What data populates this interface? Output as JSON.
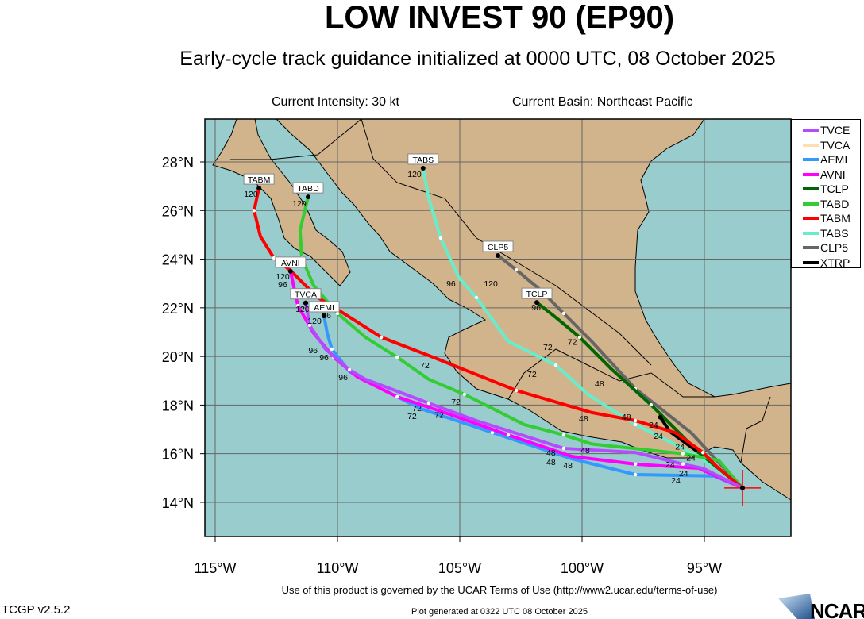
{
  "header": {
    "title": "LOW INVEST 90 (EP90)",
    "subtitle": "Early-cycle track guidance initialized at 0000 UTC, 08 October 2025",
    "current_intensity": "Current Intensity: 30 kt",
    "current_basin": "Current Basin: Northeast Pacific"
  },
  "map": {
    "lon_range": [
      -115.42,
      -91.46
    ],
    "lat_range": [
      12.6,
      29.76
    ],
    "colors": {
      "ocean": "#99cccc",
      "land": "#d2b48c",
      "grid": "#666666"
    },
    "lat_labels": [
      {
        "lat": 28,
        "label": "28°N"
      },
      {
        "lat": 26,
        "label": "26°N"
      },
      {
        "lat": 24,
        "label": "24°N"
      },
      {
        "lat": 22,
        "label": "22°N"
      },
      {
        "lat": 20,
        "label": "20°N"
      },
      {
        "lat": 18,
        "label": "18°N"
      },
      {
        "lat": 16,
        "label": "16°N"
      },
      {
        "lat": 14,
        "label": "14°N"
      }
    ],
    "lon_labels": [
      {
        "lon": -115,
        "label": "115°W"
      },
      {
        "lon": -110,
        "label": "110°W"
      },
      {
        "lon": -105,
        "label": "105°W"
      },
      {
        "lon": -100,
        "label": "100°W"
      },
      {
        "lon": -95,
        "label": "95°W"
      }
    ],
    "current_position": {
      "lon": -93.44,
      "lat": 14.59,
      "marker_color": "#ff0000"
    }
  },
  "legend": [
    {
      "name": "TVCE",
      "color": "#b24cff"
    },
    {
      "name": "TVCA",
      "color": "#ffdfb0"
    },
    {
      "name": "AEMI",
      "color": "#3399ff"
    },
    {
      "name": "AVNI",
      "color": "#ff00ff"
    },
    {
      "name": "TCLP",
      "color": "#006600"
    },
    {
      "name": "TABD",
      "color": "#33cc33"
    },
    {
      "name": "TABM",
      "color": "#ff0000"
    },
    {
      "name": "TABS",
      "color": "#66eecc"
    },
    {
      "name": "CLP5",
      "color": "#666666"
    },
    {
      "name": "XTRP",
      "color": "#000000"
    }
  ],
  "tracks": [
    {
      "name": "TVCA",
      "color": "#ffdfb0",
      "label": "",
      "points": [
        [
          -93.44,
          14.59
        ],
        [
          -95.06,
          15.4
        ],
        [
          -95.88,
          15.57
        ],
        [
          -97.82,
          16.05
        ],
        [
          -100.75,
          16.22
        ],
        [
          -104.32,
          17.36
        ],
        [
          -106.27,
          18.08
        ],
        [
          -108.86,
          19.06
        ],
        [
          -109.51,
          19.45
        ],
        [
          -110.49,
          20.3
        ],
        [
          -111.14,
          21.28
        ],
        [
          -111.3,
          22.2
        ]
      ]
    },
    {
      "name": "TABS",
      "color": "#66eecc",
      "label": "TABS",
      "points": [
        [
          -93.44,
          14.59
        ],
        [
          -95.23,
          15.89
        ],
        [
          -97.82,
          17.2
        ],
        [
          -99.77,
          18.44
        ],
        [
          -101.07,
          19.64
        ],
        [
          -103.02,
          20.62
        ],
        [
          -104.32,
          22.42
        ],
        [
          -105.03,
          23.23
        ],
        [
          -105.78,
          24.87
        ],
        [
          -106.27,
          26.5
        ],
        [
          -106.5,
          27.74
        ]
      ]
    },
    {
      "name": "CLP5",
      "color": "#666666",
      "label": "CLP5",
      "points": [
        [
          -93.44,
          14.59
        ],
        [
          -95.55,
          16.87
        ],
        [
          -97.82,
          18.67
        ],
        [
          -99.61,
          20.62
        ],
        [
          -100.75,
          21.77
        ],
        [
          -101.72,
          22.75
        ],
        [
          -102.69,
          23.56
        ],
        [
          -103.44,
          24.15
        ]
      ]
    },
    {
      "name": "TCLP",
      "color": "#006600",
      "label": "TCLP",
      "points": [
        [
          -93.44,
          14.59
        ],
        [
          -95.23,
          16.05
        ],
        [
          -97.18,
          18.01
        ],
        [
          -98.8,
          19.48
        ],
        [
          -100.1,
          20.79
        ],
        [
          -101.07,
          21.6
        ],
        [
          -101.85,
          22.22
        ]
      ]
    },
    {
      "name": "XTRP",
      "color": "#000000",
      "label": "",
      "points": [
        [
          -95.3,
          16.1
        ],
        [
          -96.4,
          16.9
        ],
        [
          -96.8,
          17.5
        ]
      ]
    },
    {
      "name": "TABD",
      "color": "#33cc33",
      "label": "TABD",
      "points": [
        [
          -93.44,
          14.59
        ],
        [
          -94.42,
          15.73
        ],
        [
          -95.88,
          16.0
        ],
        [
          -99.61,
          16.4
        ],
        [
          -100.75,
          16.77
        ],
        [
          -102.37,
          17.2
        ],
        [
          -104.81,
          18.44
        ],
        [
          -106.27,
          19.06
        ],
        [
          -107.56,
          19.97
        ],
        [
          -108.86,
          20.79
        ],
        [
          -110.0,
          21.77
        ],
        [
          -110.97,
          22.91
        ],
        [
          -111.46,
          24.05
        ],
        [
          -111.53,
          25.19
        ],
        [
          -111.2,
          26.56
        ]
      ]
    },
    {
      "name": "TABM",
      "color": "#ff0000",
      "label": "TABM",
      "points": [
        [
          -93.44,
          14.59
        ],
        [
          -94.42,
          15.4
        ],
        [
          -95.06,
          16.05
        ],
        [
          -96.2,
          16.87
        ],
        [
          -97.82,
          17.36
        ],
        [
          -99.6,
          17.69
        ],
        [
          -102.69,
          18.6
        ],
        [
          -106.1,
          19.97
        ],
        [
          -108.21,
          20.79
        ],
        [
          -110.0,
          21.93
        ],
        [
          -110.81,
          22.42
        ],
        [
          -111.95,
          23.56
        ],
        [
          -112.6,
          24.05
        ],
        [
          -113.15,
          24.93
        ],
        [
          -113.41,
          26.0
        ],
        [
          -113.21,
          26.92
        ]
      ]
    },
    {
      "name": "AEMI",
      "color": "#3399ff",
      "label": "AEMI",
      "points": [
        [
          -93.44,
          14.59
        ],
        [
          -94.58,
          15.08
        ],
        [
          -97.82,
          15.14
        ],
        [
          -100.42,
          15.79
        ],
        [
          -103.67,
          16.87
        ],
        [
          -106.59,
          17.85
        ],
        [
          -108.21,
          18.67
        ],
        [
          -109.51,
          19.38
        ],
        [
          -110.23,
          20.3
        ],
        [
          -110.42,
          20.95
        ],
        [
          -110.55,
          21.67
        ]
      ]
    },
    {
      "name": "AVNI",
      "color": "#ff00ff",
      "label": "AVNI",
      "points": [
        [
          -93.44,
          14.59
        ],
        [
          -95.23,
          15.4
        ],
        [
          -97.82,
          15.57
        ],
        [
          -100.42,
          15.89
        ],
        [
          -103.02,
          16.77
        ],
        [
          -105.62,
          17.69
        ],
        [
          -107.56,
          18.34
        ],
        [
          -109.19,
          19.16
        ],
        [
          -110.16,
          19.97
        ],
        [
          -110.97,
          20.95
        ],
        [
          -111.62,
          22.09
        ],
        [
          -111.92,
          23.5
        ]
      ]
    },
    {
      "name": "TVCE",
      "color": "#b24cff",
      "label": "TVCA",
      "points": [
        [
          -93.44,
          14.59
        ],
        [
          -95.06,
          15.4
        ],
        [
          -95.88,
          15.57
        ],
        [
          -97.82,
          16.05
        ],
        [
          -100.75,
          16.22
        ],
        [
          -104.32,
          17.36
        ],
        [
          -106.27,
          18.08
        ],
        [
          -108.86,
          19.06
        ],
        [
          -109.51,
          19.45
        ],
        [
          -110.49,
          20.3
        ],
        [
          -111.14,
          21.28
        ],
        [
          -111.3,
          22.2
        ]
      ]
    }
  ],
  "hour_labels": [
    {
      "text": "120",
      "lon": -113.54,
      "lat": 26.69
    },
    {
      "text": "120",
      "lon": -111.56,
      "lat": 26.3
    },
    {
      "text": "120",
      "lon": -106.85,
      "lat": 27.51
    },
    {
      "text": "120",
      "lon": -112.24,
      "lat": 23.3
    },
    {
      "text": "96",
      "lon": -112.24,
      "lat": 22.97
    },
    {
      "text": "120",
      "lon": -111.43,
      "lat": 21.96
    },
    {
      "text": "120",
      "lon": -110.94,
      "lat": 21.47
    },
    {
      "text": "96",
      "lon": -110.45,
      "lat": 21.7
    },
    {
      "text": "96",
      "lon": -111.0,
      "lat": 20.26
    },
    {
      "text": "96",
      "lon": -110.55,
      "lat": 19.97
    },
    {
      "text": "96",
      "lon": -109.77,
      "lat": 19.16
    },
    {
      "text": "96",
      "lon": -105.36,
      "lat": 23.0
    },
    {
      "text": "120",
      "lon": -103.73,
      "lat": 23.0
    },
    {
      "text": "96",
      "lon": -101.88,
      "lat": 22.03
    },
    {
      "text": "72",
      "lon": -106.43,
      "lat": 19.64
    },
    {
      "text": "72",
      "lon": -105.16,
      "lat": 18.14
    },
    {
      "text": "72",
      "lon": -105.84,
      "lat": 17.6
    },
    {
      "text": "72",
      "lon": -106.95,
      "lat": 17.56
    },
    {
      "text": "72",
      "lon": -106.75,
      "lat": 17.88
    },
    {
      "text": "72",
      "lon": -102.05,
      "lat": 19.29
    },
    {
      "text": "72",
      "lon": -101.4,
      "lat": 20.4
    },
    {
      "text": "72",
      "lon": -100.4,
      "lat": 20.6
    },
    {
      "text": "48",
      "lon": -99.94,
      "lat": 17.46
    },
    {
      "text": "48",
      "lon": -98.19,
      "lat": 17.52
    },
    {
      "text": "48",
      "lon": -99.87,
      "lat": 16.15
    },
    {
      "text": "48",
      "lon": -101.27,
      "lat": 15.66
    },
    {
      "text": "48",
      "lon": -101.27,
      "lat": 16.05
    },
    {
      "text": "48",
      "lon": -100.58,
      "lat": 15.53
    },
    {
      "text": "48",
      "lon": -99.29,
      "lat": 18.9
    },
    {
      "text": "24",
      "lon": -96.88,
      "lat": 16.74
    },
    {
      "text": "24",
      "lon": -96.0,
      "lat": 16.3
    },
    {
      "text": "24",
      "lon": -95.55,
      "lat": 15.85
    },
    {
      "text": "24",
      "lon": -96.4,
      "lat": 15.57
    },
    {
      "text": "24",
      "lon": -95.85,
      "lat": 15.2
    },
    {
      "text": "24",
      "lon": -96.17,
      "lat": 14.91
    },
    {
      "text": "24",
      "lon": -97.08,
      "lat": 17.2
    }
  ],
  "footer": {
    "terms": "Use of this product is governed by the UCAR Terms of Use (http://www2.ucar.edu/terms-of-use)",
    "version": "TCGP v2.5.2",
    "generated": "Plot generated at 0322 UTC   08 October 2025",
    "logo_text": "NCAR"
  }
}
